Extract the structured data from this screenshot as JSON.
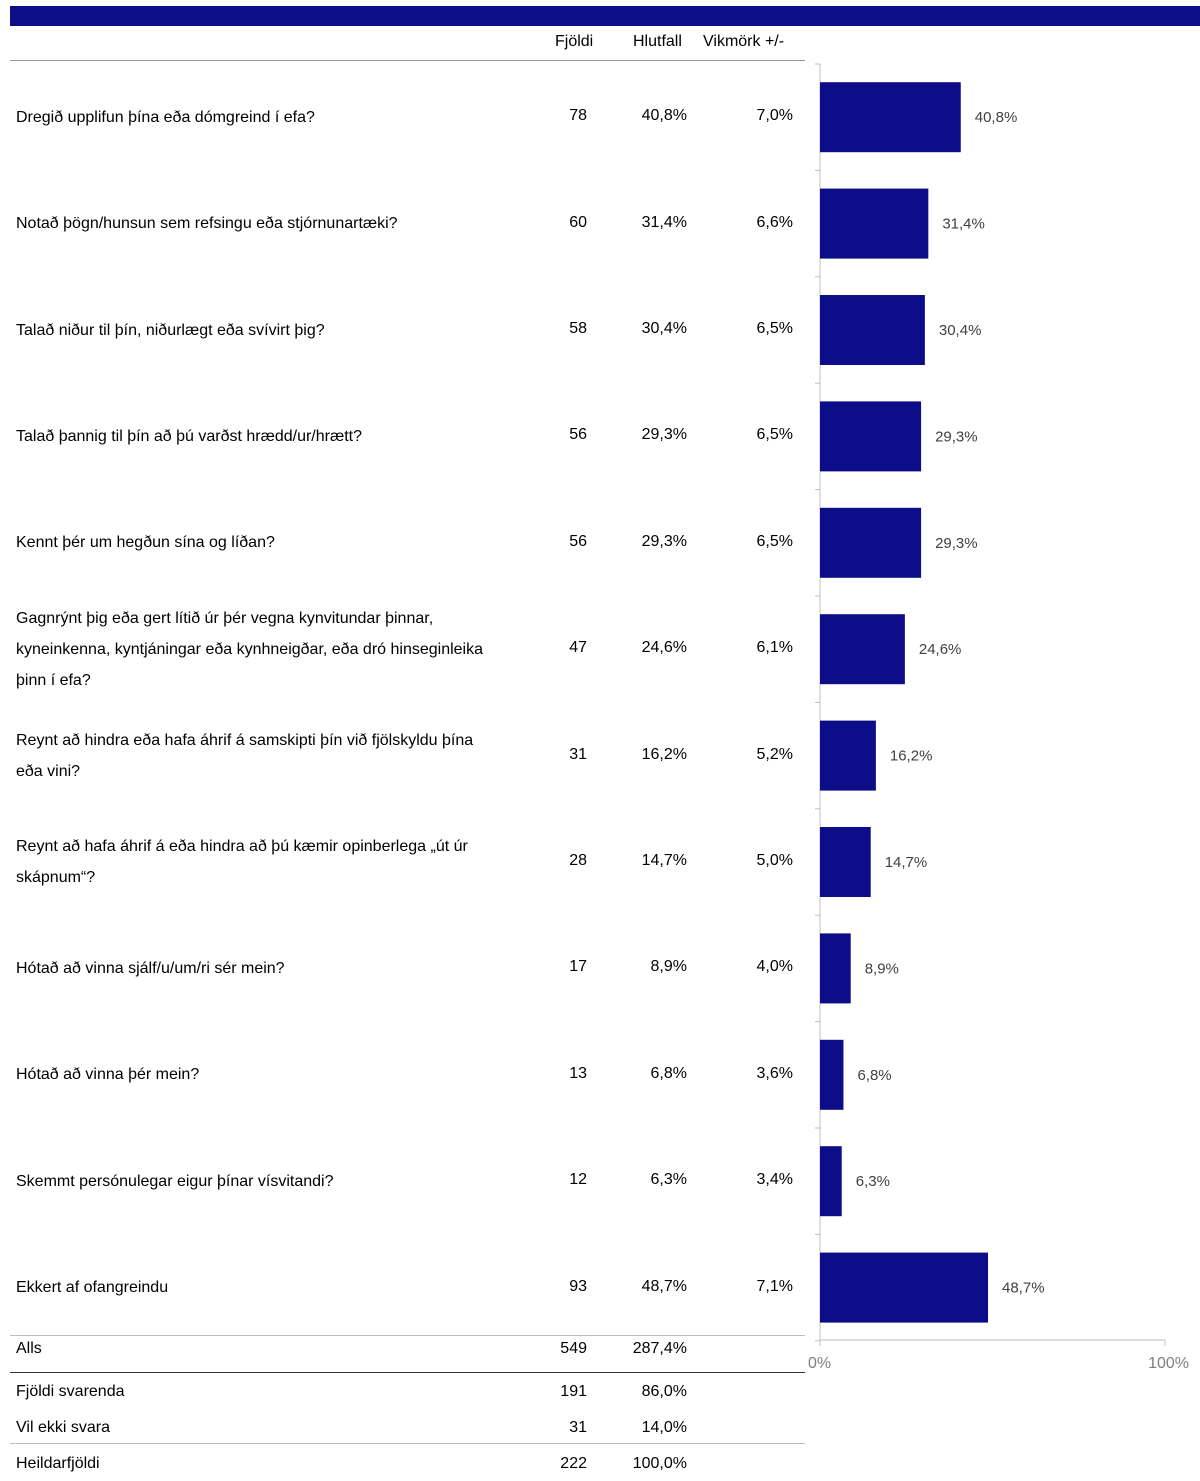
{
  "headers": {
    "count": "Fjöldi",
    "share": "Hlutfall",
    "margin": "Vikmörk +/-"
  },
  "rows": [
    {
      "label": "Dregið upplifun þína eða dómgreind í efa?",
      "count": "78",
      "share": "40,8%",
      "margin": "7,0%"
    },
    {
      "label": "Notað þögn/hunsun sem refsingu eða stjórnunartæki?",
      "count": "60",
      "share": "31,4%",
      "margin": "6,6%"
    },
    {
      "label": "Talað niður til þín, niðurlægt eða svívirt þig?",
      "count": "58",
      "share": "30,4%",
      "margin": "6,5%"
    },
    {
      "label": "Talað þannig til þín að þú varðst hrædd/ur/hrætt?",
      "count": "56",
      "share": "29,3%",
      "margin": "6,5%"
    },
    {
      "label": "Kennt þér um hegðun sína og líðan?",
      "count": "56",
      "share": "29,3%",
      "margin": "6,5%"
    },
    {
      "label": "Gagnrýnt þig eða gert lítið úr þér vegna kynvitundar þinnar, kyneinkenna, kyntjáningar eða kynhneigðar, eða dró hinseginleika þinn í efa?",
      "count": "47",
      "share": "24,6%",
      "margin": "6,1%"
    },
    {
      "label": "Reynt að hindra eða hafa áhrif á samskipti þín við fjölskyldu þína eða vini?",
      "count": "31",
      "share": "16,2%",
      "margin": "5,2%"
    },
    {
      "label": "Reynt að hafa áhrif á eða hindra að þú kæmir opinberlega „út úr skápnum“?",
      "count": "28",
      "share": "14,7%",
      "margin": "5,0%"
    },
    {
      "label": "Hótað að vinna sjálf/u/um/ri sér mein?",
      "count": "17",
      "share": "8,9%",
      "margin": "4,0%"
    },
    {
      "label": "Hótað að vinna þér mein?",
      "count": "13",
      "share": "6,8%",
      "margin": "3,6%"
    },
    {
      "label": "Skemmt persónulegar eigur þínar vísvitandi?",
      "count": "12",
      "share": "6,3%",
      "margin": "3,4%"
    },
    {
      "label": "Ekkert af ofangreindu",
      "count": "93",
      "share": "48,7%",
      "margin": "7,1%"
    }
  ],
  "totals": [
    {
      "label": "Alls",
      "count": "549",
      "share": "287,4%"
    },
    {
      "label": "Fjöldi svarenda",
      "count": "191",
      "share": "86,0%"
    },
    {
      "label": "Vil ekki svara",
      "count": "31",
      "share": "14,0%"
    },
    {
      "label": "Heildarfjöldi",
      "count": "222",
      "share": "100,0%"
    }
  ],
  "colors": {
    "bar": "#0d0d8a",
    "header_bar": "#0d0d8a",
    "axis": "#bfbfbf"
  },
  "chart_data": {
    "type": "bar",
    "orientation": "horizontal",
    "categories": [
      "Dregið upplifun þína eða dómgreind í efa?",
      "Notað þögn/hunsun sem refsingu eða stjórnunartæki?",
      "Talað niður til þín, niðurlægt eða svívirt þig?",
      "Talað þannig til þín að þú varðst hrædd/ur/hrætt?",
      "Kennt þér um hegðun sína og líðan?",
      "Gagnrýnt þig eða gert lítið úr þér vegna kynvitundar þinnar, kyneinkenna, kyntjáningar eða kynhneigðar, eða dró hinseginleika þinn í efa?",
      "Reynt að hindra eða hafa áhrif á samskipti þín við fjölskyldu þína eða vini?",
      "Reynt að hafa áhrif á eða hindra að þú kæmir opinberlega „út úr skápnum“?",
      "Hótað að vinna sjálf/u/um/ri sér mein?",
      "Hótað að vinna þér mein?",
      "Skemmt persónulegar eigur þínar vísvitandi?",
      "Ekkert af ofangreindu"
    ],
    "values": [
      40.8,
      31.4,
      30.4,
      29.3,
      29.3,
      24.6,
      16.2,
      14.7,
      8.9,
      6.8,
      6.3,
      48.7
    ],
    "data_labels": [
      "40,8%",
      "31,4%",
      "30,4%",
      "29,3%",
      "29,3%",
      "24,6%",
      "16,2%",
      "14,7%",
      "8,9%",
      "6,8%",
      "6,3%",
      "48,7%"
    ],
    "xlim": [
      0,
      100
    ],
    "xticks": [
      "0%",
      "100%"
    ],
    "title": "",
    "xlabel": "",
    "ylabel": "",
    "grid": false,
    "legend": "none"
  }
}
